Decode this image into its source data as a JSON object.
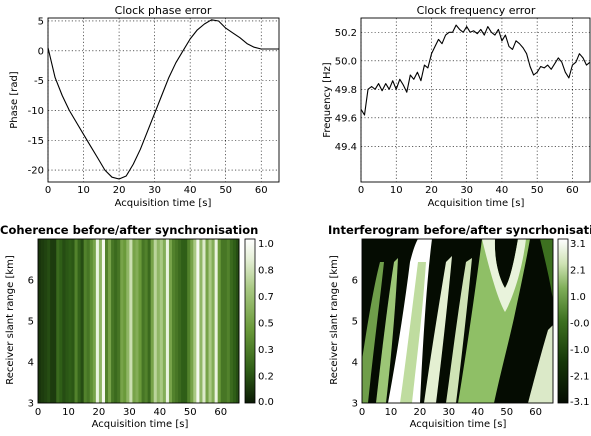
{
  "chart_data": [
    {
      "id": "phase",
      "type": "line",
      "title": "Clock phase error",
      "xlabel": "Acquisition time [s]",
      "ylabel": "Phase [rad]",
      "xlim": [
        0,
        65
      ],
      "ylim": [
        -22,
        5.5
      ],
      "xticks": [
        0,
        10,
        20,
        30,
        40,
        50,
        60
      ],
      "yticks": [
        5,
        0,
        -5,
        -10,
        -15,
        -20
      ],
      "grid": true,
      "series": [
        {
          "x": [
            0,
            2,
            4,
            6,
            8,
            10,
            12,
            14,
            16,
            18,
            20,
            22,
            24,
            26,
            28,
            30,
            32,
            34,
            36,
            38,
            40,
            42,
            44,
            46,
            48,
            50,
            52,
            54,
            56,
            58,
            60,
            62,
            65
          ],
          "values": [
            0.5,
            -4.5,
            -7.5,
            -10,
            -12,
            -14,
            -16,
            -18,
            -20,
            -21.2,
            -21.5,
            -21,
            -19,
            -16.5,
            -13.5,
            -10.5,
            -7.5,
            -4.5,
            -2,
            0,
            2,
            3.5,
            4.5,
            5.2,
            5,
            3.8,
            3,
            2.2,
            1.2,
            0.6,
            0.3,
            0.3,
            0.3
          ]
        }
      ]
    },
    {
      "id": "freq",
      "type": "line",
      "title": "Clock frequency error",
      "xlabel": "Acquisition time [s]",
      "ylabel": "Frequency [Hz]",
      "xlim": [
        0,
        65
      ],
      "ylim": [
        49.15,
        50.3
      ],
      "xticks": [
        0,
        10,
        20,
        30,
        40,
        50,
        60
      ],
      "yticks": [
        50.2,
        50.0,
        49.8,
        49.6,
        49.4
      ],
      "ytick_labels": [
        "50.2",
        "50.0",
        "49.8",
        "49.6",
        "49.4"
      ],
      "grid": true,
      "series": [
        {
          "x": [
            0,
            1,
            2,
            3,
            4,
            5,
            6,
            7,
            8,
            9,
            10,
            11,
            12,
            13,
            14,
            15,
            16,
            17,
            18,
            19,
            20,
            21,
            22,
            23,
            24,
            25,
            26,
            27,
            28,
            29,
            30,
            31,
            32,
            33,
            34,
            35,
            36,
            37,
            38,
            39,
            40,
            41,
            42,
            43,
            44,
            45,
            46,
            47,
            48,
            49,
            50,
            51,
            52,
            53,
            54,
            55,
            56,
            57,
            58,
            59,
            60,
            61,
            62,
            63,
            64,
            65
          ],
          "values": [
            49.66,
            49.62,
            49.8,
            49.82,
            49.8,
            49.84,
            49.79,
            49.84,
            49.8,
            49.86,
            49.8,
            49.87,
            49.83,
            49.78,
            49.9,
            49.87,
            49.92,
            49.86,
            49.97,
            49.95,
            50.05,
            50.1,
            50.15,
            50.12,
            50.18,
            50.2,
            50.2,
            50.25,
            50.22,
            50.2,
            50.24,
            50.2,
            50.21,
            50.19,
            50.22,
            50.18,
            50.24,
            50.2,
            50.18,
            50.22,
            50.14,
            50.18,
            50.1,
            50.08,
            50.14,
            50.12,
            50.09,
            50.05,
            49.96,
            49.9,
            49.92,
            49.96,
            49.95,
            49.97,
            49.94,
            49.98,
            50.02,
            49.99,
            49.92,
            49.88,
            49.97,
            49.99,
            50.05,
            50.02,
            49.97,
            49.99
          ]
        }
      ]
    },
    {
      "id": "coherence",
      "type": "heatmap",
      "title": "Coherence before/after synchronisation",
      "xlabel": "Acquisition time [s]",
      "ylabel": "Receiver slant range [km]",
      "xlim": [
        0,
        66
      ],
      "ylim": [
        3,
        7
      ],
      "xticks": [
        0,
        10,
        20,
        30,
        40,
        50,
        60
      ],
      "yticks": [
        3,
        4,
        5,
        6
      ],
      "colorbar": {
        "range": [
          0,
          1
        ],
        "tick_labels": [
          "1.0",
          "0.8",
          "0.7",
          "0.5",
          "0.3",
          "0.2",
          "0.0"
        ],
        "colors": [
          "#0b1a05",
          "#2f5e17",
          "#6a9a3a",
          "#a9c983",
          "#e6f0d8",
          "#ffffff"
        ]
      },
      "column_coherence": [
        0.08,
        0.1,
        0.12,
        0.15,
        0.1,
        0.1,
        0.25,
        0.2,
        0.15,
        0.18,
        0.2,
        0.18,
        0.35,
        0.22,
        0.15,
        0.35,
        0.3,
        0.4,
        0.5,
        0.9,
        0.6,
        0.95,
        0.35,
        0.5,
        0.3,
        0.25,
        0.3,
        0.5,
        0.45,
        0.6,
        0.8,
        0.5,
        0.55,
        0.45,
        0.3,
        0.35,
        0.25,
        0.5,
        0.75,
        0.6,
        0.7,
        0.55,
        0.9,
        0.5,
        0.35,
        0.3,
        0.25,
        0.2,
        0.2,
        0.35,
        0.5,
        0.7,
        0.95,
        0.6,
        0.85,
        0.5,
        0.7,
        0.55,
        0.9,
        0.45,
        0.3,
        0.3,
        0.35,
        0.25,
        0.2,
        0.15
      ]
    },
    {
      "id": "interferogram",
      "type": "heatmap",
      "title": "Interferogram before/after syncrhonisation",
      "xlabel": "Acquisition time [s]",
      "ylabel": "Receiver slant range [km]",
      "xlim": [
        0,
        66
      ],
      "ylim": [
        3,
        7
      ],
      "xticks": [
        0,
        10,
        20,
        30,
        40,
        50,
        60
      ],
      "yticks": [
        3,
        4,
        5,
        6
      ],
      "colorbar": {
        "range": [
          -3.1,
          3.1
        ],
        "tick_labels": [
          "3.1",
          "2.1",
          "1.0",
          "-0.0",
          "-1.0",
          "-2.1",
          "-3.1"
        ],
        "colors": [
          "#ffffff",
          "#cfe3b5",
          "#7fae58",
          "#3d7020",
          "#153608",
          "#050c02"
        ]
      }
    }
  ]
}
